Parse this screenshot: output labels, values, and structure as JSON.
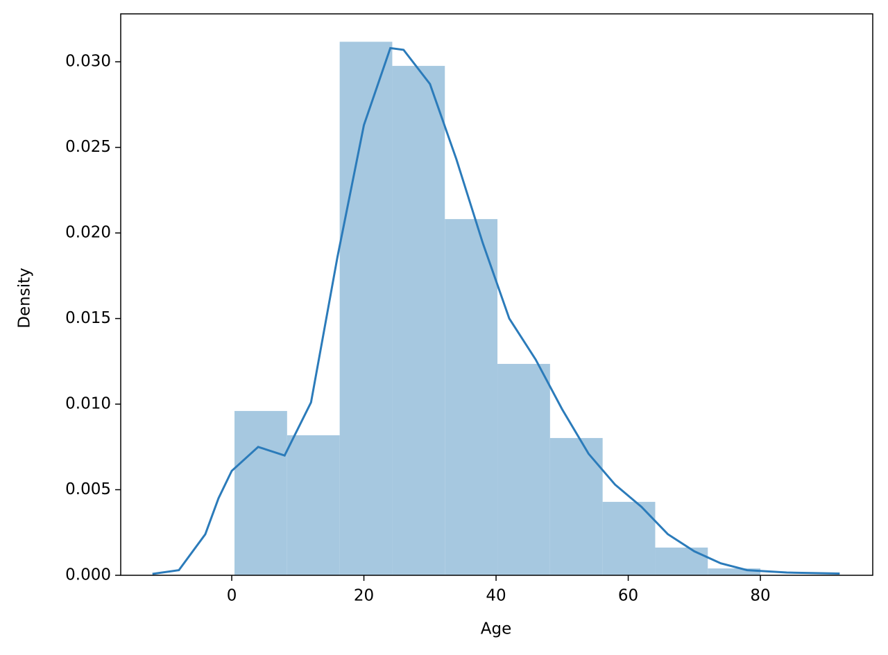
{
  "chart_data": {
    "type": "histogram",
    "xlabel": "Age",
    "ylabel": "Density",
    "bins": [
      0.42,
      8.378,
      16.336,
      24.294,
      32.252,
      40.21,
      48.168,
      56.126,
      64.084,
      72.042,
      80.0
    ],
    "values": [
      0.0096,
      0.00818,
      0.03117,
      0.02976,
      0.02081,
      0.01235,
      0.00802,
      0.00429,
      0.00162,
      0.0004
    ],
    "color": "#a6c8e0",
    "kde": {
      "color": "#2b7bba",
      "x": [
        -12,
        -8,
        -4,
        -2,
        0,
        4,
        8,
        12,
        16,
        20,
        24,
        26,
        30,
        34,
        38,
        42,
        46,
        50,
        54,
        58,
        62,
        66,
        70,
        74,
        78,
        84,
        92
      ],
      "values": [
        8e-05,
        0.0003,
        0.0024,
        0.0045,
        0.0061,
        0.0075,
        0.007,
        0.0101,
        0.0186,
        0.0263,
        0.0308,
        0.0307,
        0.0287,
        0.0243,
        0.0194,
        0.015,
        0.0126,
        0.0097,
        0.0071,
        0.0053,
        0.004,
        0.0024,
        0.0014,
        0.0007,
        0.0003,
        0.00016,
        0.0001
      ]
    },
    "xlim": [
      -16.8,
      97.0
    ],
    "ylim": [
      0,
      0.0328
    ],
    "xticks": [
      0,
      20,
      40,
      60,
      80
    ],
    "yticks": [
      {
        "value": 0,
        "label": "0.000"
      },
      {
        "value": 0.005,
        "label": "0.005"
      },
      {
        "value": 0.01,
        "label": "0.010"
      },
      {
        "value": 0.015,
        "label": "0.015"
      },
      {
        "value": 0.02,
        "label": "0.020"
      },
      {
        "value": 0.025,
        "label": "0.025"
      },
      {
        "value": 0.03,
        "label": "0.030"
      }
    ]
  }
}
